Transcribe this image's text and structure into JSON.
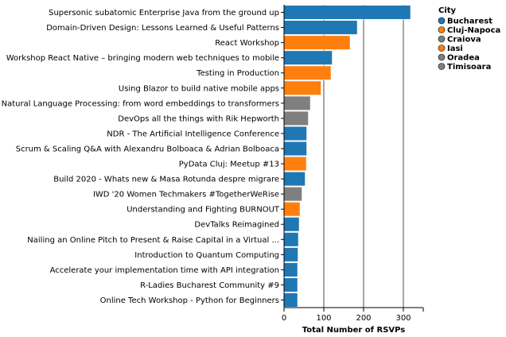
{
  "chart_data": {
    "type": "bar",
    "orientation": "horizontal",
    "xlabel": "Total Number of RSVPs",
    "ylabel": "",
    "xlim": [
      0,
      350
    ],
    "xticks": [
      0,
      100,
      200,
      300
    ],
    "grid": true,
    "legend": {
      "title": "City",
      "placement": "top-right",
      "entries": [
        {
          "name": "Bucharest",
          "color": "#1f77b4"
        },
        {
          "name": "Cluj-Napoca",
          "color": "#ff7f0e"
        },
        {
          "name": "Craiova",
          "color": "#7f7f7f"
        },
        {
          "name": "Iasi",
          "color": "#ff7f0e"
        },
        {
          "name": "Oradea",
          "color": "#7f7f7f"
        },
        {
          "name": "Timisoara",
          "color": "#7f7f7f"
        }
      ]
    },
    "bars": [
      {
        "category": "Supersonic subatomic Enterprise Java from the ground up",
        "value": 318,
        "color": "#1f77b4"
      },
      {
        "category": "Domain-Driven Design: Lessons Learned & Useful Patterns",
        "value": 184,
        "color": "#1f77b4"
      },
      {
        "category": "React Workshop",
        "value": 166,
        "color": "#ff7f0e"
      },
      {
        "category": "Workshop React Native – bringing modern web techniques to mobile",
        "value": 121,
        "color": "#1f77b4"
      },
      {
        "category": "Testing in Production",
        "value": 118,
        "color": "#ff7f0e"
      },
      {
        "category": "Using Blazor to build native mobile apps",
        "value": 93,
        "color": "#ff7f0e"
      },
      {
        "category": "Natural Language Processing: from word embeddings to transformers",
        "value": 66,
        "color": "#7f7f7f"
      },
      {
        "category": "DevOps all the things with Rik Hepworth",
        "value": 61,
        "color": "#7f7f7f"
      },
      {
        "category": "NDR - The Artificial Intelligence Conference",
        "value": 57,
        "color": "#1f77b4"
      },
      {
        "category": "Scrum & Scaling Q&A with Alexandru Bolboaca & Adrian Bolboaca",
        "value": 57,
        "color": "#1f77b4"
      },
      {
        "category": "PyData Cluj: Meetup #13",
        "value": 56,
        "color": "#ff7f0e"
      },
      {
        "category": "Build 2020 - Whats new  &  Masa Rotunda despre migrare",
        "value": 53,
        "color": "#1f77b4"
      },
      {
        "category": "IWD '20 Women Techmakers #TogetherWeRise",
        "value": 45,
        "color": "#7f7f7f"
      },
      {
        "category": "Understanding and Fighting BURNOUT",
        "value": 40,
        "color": "#ff7f0e"
      },
      {
        "category": "DevTalks Reimagined",
        "value": 38,
        "color": "#1f77b4"
      },
      {
        "category": "Nailing an Online Pitch to Present & Raise Capital in a Virtual ...",
        "value": 36,
        "color": "#1f77b4"
      },
      {
        "category": "Introduction to Quantum Computing",
        "value": 35,
        "color": "#1f77b4"
      },
      {
        "category": "Accelerate your implementation time with API integration",
        "value": 34,
        "color": "#1f77b4"
      },
      {
        "category": "R-Ladies Bucharest Community #9",
        "value": 34,
        "color": "#1f77b4"
      },
      {
        "category": "Online Tech Workshop - Python for Beginners",
        "value": 34,
        "color": "#1f77b4"
      }
    ]
  }
}
